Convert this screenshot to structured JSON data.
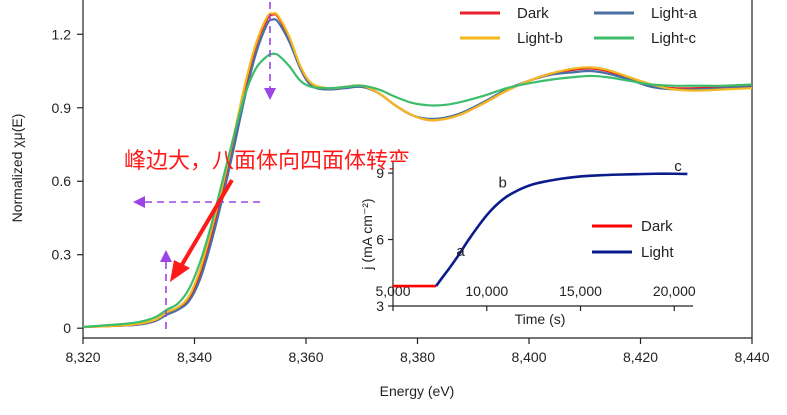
{
  "chart_data": [
    {
      "type": "line",
      "title": "",
      "xlabel": "Energy (eV)",
      "ylabel": "Normalized χμ(E)",
      "xlim": [
        8320,
        8440
      ],
      "ylim": [
        -0.04,
        1.34
      ],
      "x_ticks": [
        8320,
        8340,
        8360,
        8380,
        8400,
        8420,
        8440
      ],
      "x_tick_labels": [
        "8,320",
        "8,340",
        "8,360",
        "8,380",
        "8,400",
        "8,420",
        "8,440"
      ],
      "y_ticks": [
        0,
        0.3,
        0.6,
        0.9,
        1.2
      ],
      "y_tick_labels": [
        "0",
        "0.3",
        "0.6",
        "0.9",
        "1.2"
      ],
      "grid": false,
      "legend_position": "top-right",
      "series": [
        {
          "name": "Dark",
          "color": "#e8202a",
          "points": [
            [
              8320,
              0.005
            ],
            [
              8326,
              0.01
            ],
            [
              8330,
              0.015
            ],
            [
              8333,
              0.03
            ],
            [
              8335,
              0.06
            ],
            [
              8337,
              0.08
            ],
            [
              8339,
              0.12
            ],
            [
              8341,
              0.22
            ],
            [
              8343,
              0.38
            ],
            [
              8345,
              0.56
            ],
            [
              8347,
              0.76
            ],
            [
              8349,
              0.97
            ],
            [
              8351,
              1.15
            ],
            [
              8353,
              1.26
            ],
            [
              8354,
              1.28
            ],
            [
              8355,
              1.27
            ],
            [
              8357,
              1.18
            ],
            [
              8359,
              1.06
            ],
            [
              8361,
              0.99
            ],
            [
              8364,
              0.975
            ],
            [
              8367,
              0.985
            ],
            [
              8370,
              0.99
            ],
            [
              8373,
              0.96
            ],
            [
              8376,
              0.91
            ],
            [
              8379,
              0.87
            ],
            [
              8382,
              0.85
            ],
            [
              8385,
              0.855
            ],
            [
              8388,
              0.875
            ],
            [
              8392,
              0.92
            ],
            [
              8396,
              0.97
            ],
            [
              8400,
              1.01
            ],
            [
              8404,
              1.04
            ],
            [
              8408,
              1.055
            ],
            [
              8411,
              1.06
            ],
            [
              8414,
              1.05
            ],
            [
              8418,
              1.02
            ],
            [
              8422,
              0.99
            ],
            [
              8426,
              0.98
            ],
            [
              8430,
              0.98
            ],
            [
              8435,
              0.985
            ],
            [
              8440,
              0.99
            ]
          ]
        },
        {
          "name": "Light-a",
          "color": "#4a6fa5",
          "points": [
            [
              8320,
              0.005
            ],
            [
              8326,
              0.01
            ],
            [
              8330,
              0.015
            ],
            [
              8333,
              0.03
            ],
            [
              8335,
              0.055
            ],
            [
              8337,
              0.075
            ],
            [
              8339,
              0.11
            ],
            [
              8341,
              0.2
            ],
            [
              8343,
              0.35
            ],
            [
              8345,
              0.53
            ],
            [
              8347,
              0.73
            ],
            [
              8349,
              0.94
            ],
            [
              8351,
              1.12
            ],
            [
              8353,
              1.24
            ],
            [
              8354,
              1.26
            ],
            [
              8355,
              1.25
            ],
            [
              8357,
              1.17
            ],
            [
              8359,
              1.06
            ],
            [
              8361,
              0.99
            ],
            [
              8364,
              0.975
            ],
            [
              8367,
              0.98
            ],
            [
              8370,
              0.985
            ],
            [
              8373,
              0.96
            ],
            [
              8376,
              0.91
            ],
            [
              8379,
              0.87
            ],
            [
              8382,
              0.855
            ],
            [
              8385,
              0.86
            ],
            [
              8388,
              0.88
            ],
            [
              8392,
              0.925
            ],
            [
              8396,
              0.975
            ],
            [
              8400,
              1.01
            ],
            [
              8404,
              1.035
            ],
            [
              8408,
              1.045
            ],
            [
              8411,
              1.05
            ],
            [
              8414,
              1.04
            ],
            [
              8418,
              1.015
            ],
            [
              8422,
              0.985
            ],
            [
              8426,
              0.975
            ],
            [
              8430,
              0.975
            ],
            [
              8435,
              0.98
            ],
            [
              8440,
              0.985
            ]
          ]
        },
        {
          "name": "Light-b",
          "color": "#f5b91e",
          "points": [
            [
              8320,
              0.005
            ],
            [
              8326,
              0.01
            ],
            [
              8330,
              0.018
            ],
            [
              8333,
              0.035
            ],
            [
              8335,
              0.065
            ],
            [
              8337,
              0.085
            ],
            [
              8339,
              0.13
            ],
            [
              8341,
              0.24
            ],
            [
              8343,
              0.4
            ],
            [
              8345,
              0.58
            ],
            [
              8347,
              0.78
            ],
            [
              8349,
              0.99
            ],
            [
              8351,
              1.16
            ],
            [
              8353,
              1.27
            ],
            [
              8354,
              1.285
            ],
            [
              8355,
              1.275
            ],
            [
              8357,
              1.19
            ],
            [
              8359,
              1.07
            ],
            [
              8361,
              1.0
            ],
            [
              8364,
              0.98
            ],
            [
              8367,
              0.985
            ],
            [
              8370,
              0.99
            ],
            [
              8373,
              0.96
            ],
            [
              8376,
              0.91
            ],
            [
              8379,
              0.87
            ],
            [
              8382,
              0.85
            ],
            [
              8385,
              0.855
            ],
            [
              8388,
              0.875
            ],
            [
              8392,
              0.92
            ],
            [
              8396,
              0.97
            ],
            [
              8400,
              1.01
            ],
            [
              8404,
              1.04
            ],
            [
              8408,
              1.06
            ],
            [
              8411,
              1.065
            ],
            [
              8414,
              1.055
            ],
            [
              8418,
              1.025
            ],
            [
              8422,
              0.995
            ],
            [
              8426,
              0.975
            ],
            [
              8430,
              0.97
            ],
            [
              8435,
              0.975
            ],
            [
              8440,
              0.98
            ]
          ]
        },
        {
          "name": "Light-c",
          "color": "#3dbd6b",
          "points": [
            [
              8320,
              0.005
            ],
            [
              8326,
              0.015
            ],
            [
              8330,
              0.025
            ],
            [
              8333,
              0.045
            ],
            [
              8335,
              0.075
            ],
            [
              8337,
              0.1
            ],
            [
              8339,
              0.16
            ],
            [
              8341,
              0.27
            ],
            [
              8343,
              0.42
            ],
            [
              8345,
              0.6
            ],
            [
              8347,
              0.78
            ],
            [
              8349,
              0.95
            ],
            [
              8351,
              1.06
            ],
            [
              8353,
              1.11
            ],
            [
              8354,
              1.12
            ],
            [
              8355,
              1.115
            ],
            [
              8357,
              1.07
            ],
            [
              8359,
              1.01
            ],
            [
              8361,
              0.985
            ],
            [
              8364,
              0.98
            ],
            [
              8367,
              0.985
            ],
            [
              8370,
              0.99
            ],
            [
              8373,
              0.975
            ],
            [
              8376,
              0.945
            ],
            [
              8379,
              0.92
            ],
            [
              8382,
              0.91
            ],
            [
              8385,
              0.912
            ],
            [
              8388,
              0.925
            ],
            [
              8392,
              0.95
            ],
            [
              8396,
              0.98
            ],
            [
              8400,
              1.0
            ],
            [
              8404,
              1.015
            ],
            [
              8408,
              1.025
            ],
            [
              8411,
              1.03
            ],
            [
              8414,
              1.025
            ],
            [
              8418,
              1.01
            ],
            [
              8422,
              0.995
            ],
            [
              8426,
              0.99
            ],
            [
              8430,
              0.99
            ],
            [
              8435,
              0.99
            ],
            [
              8440,
              0.995
            ]
          ]
        }
      ],
      "annotations": [
        {
          "text": "峰边大，八面体向四面体转变",
          "color": "#ff1a1a"
        }
      ]
    },
    {
      "type": "line",
      "title": "",
      "xlabel": "Time (s)",
      "ylabel": "j (mA cm⁻²)",
      "xlim": [
        5000,
        21000
      ],
      "ylim": [
        3,
        9.5
      ],
      "x_ticks": [
        5000,
        10000,
        15000,
        20000
      ],
      "x_tick_labels": [
        "5,000",
        "10,000",
        "15,000",
        "20,000"
      ],
      "y_ticks": [
        3,
        6,
        9
      ],
      "y_tick_labels": [
        "3",
        "6",
        "9"
      ],
      "legend_position": "bottom-right",
      "series": [
        {
          "name": "Dark",
          "color": "#ff0000",
          "points": [
            [
              5000,
              3.9
            ],
            [
              5500,
              3.9
            ],
            [
              6000,
              3.9
            ],
            [
              6500,
              3.9
            ],
            [
              7000,
              3.9
            ],
            [
              7300,
              3.9
            ]
          ]
        },
        {
          "name": "Light",
          "color": "#0a1c8c",
          "points": [
            [
              7300,
              3.9
            ],
            [
              7600,
              4.25
            ],
            [
              8000,
              4.7
            ],
            [
              8500,
              5.3
            ],
            [
              9000,
              5.95
            ],
            [
              9500,
              6.55
            ],
            [
              10000,
              7.1
            ],
            [
              10500,
              7.55
            ],
            [
              11000,
              7.9
            ],
            [
              11500,
              8.15
            ],
            [
              12000,
              8.35
            ],
            [
              12500,
              8.5
            ],
            [
              13000,
              8.6
            ],
            [
              14000,
              8.75
            ],
            [
              15000,
              8.85
            ],
            [
              16000,
              8.9
            ],
            [
              17000,
              8.93
            ],
            [
              18000,
              8.95
            ],
            [
              19000,
              8.97
            ],
            [
              20000,
              8.97
            ],
            [
              20700,
              8.96
            ]
          ]
        }
      ],
      "point_labels": [
        {
          "text": "a",
          "x": 8600,
          "y": 5.25
        },
        {
          "text": "b",
          "x": 10850,
          "y": 8.35
        },
        {
          "text": "c",
          "x": 20200,
          "y": 9.1
        }
      ]
    }
  ]
}
